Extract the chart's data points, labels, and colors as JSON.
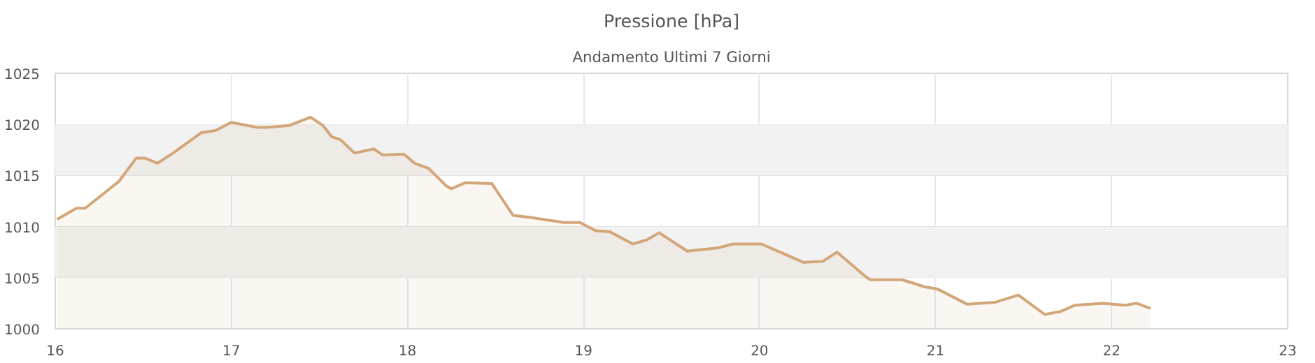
{
  "chart_data": {
    "type": "area",
    "title": "Pressione [hPa]",
    "subtitle": "Andamento Ultimi 7 Giorni",
    "x": [
      16.01,
      16.12,
      16.17,
      16.28,
      16.36,
      16.46,
      16.51,
      16.58,
      16.67,
      16.75,
      16.83,
      16.91,
      17.0,
      17.15,
      17.2,
      17.33,
      17.45,
      17.52,
      17.57,
      17.62,
      17.7,
      17.81,
      17.86,
      17.98,
      18.04,
      18.12,
      18.22,
      18.25,
      18.33,
      18.48,
      18.6,
      18.7,
      18.89,
      18.98,
      19.07,
      19.15,
      19.28,
      19.36,
      19.43,
      19.59,
      19.76,
      19.85,
      20.01,
      20.13,
      20.25,
      20.36,
      20.44,
      20.61,
      20.63,
      20.81,
      20.94,
      21.01,
      21.18,
      21.34,
      21.47,
      21.62,
      21.71,
      21.79,
      21.95,
      22.08,
      22.14,
      22.22
    ],
    "series": [
      {
        "color": "#d2a679",
        "values": [
          1010.7,
          1011.8,
          1011.8,
          1013.3,
          1014.4,
          1016.7,
          1016.7,
          1016.2,
          1017.2,
          1018.2,
          1019.2,
          1019.4,
          1020.2,
          1019.7,
          1019.7,
          1019.9,
          1020.7,
          1019.9,
          1018.8,
          1018.5,
          1017.2,
          1017.6,
          1017.0,
          1017.1,
          1016.2,
          1015.7,
          1014.0,
          1013.7,
          1014.3,
          1014.2,
          1011.1,
          1010.9,
          1010.4,
          1010.4,
          1009.6,
          1009.5,
          1008.3,
          1008.7,
          1009.4,
          1007.6,
          1007.9,
          1008.3,
          1008.3,
          1007.4,
          1006.5,
          1006.6,
          1007.5,
          1005.0,
          1004.8,
          1004.8,
          1004.1,
          1003.9,
          1002.4,
          1002.6,
          1003.3,
          1001.4,
          1001.7,
          1002.3,
          1002.5,
          1002.3,
          1002.5,
          1002.0
        ]
      }
    ],
    "xlim": [
      16,
      23
    ],
    "xticks": [
      16,
      17,
      18,
      19,
      20,
      21,
      22,
      23
    ],
    "ylim": [
      1000,
      1025
    ],
    "yticks": [
      1000,
      1005,
      1010,
      1015,
      1020,
      1025
    ],
    "bands": [
      {
        "axis": "y",
        "from": 1005,
        "to": 1010,
        "color": "#f2f2f2"
      },
      {
        "axis": "y",
        "from": 1015,
        "to": 1020,
        "color": "#f2f2f2"
      }
    ],
    "grid": true,
    "marker": "none",
    "line_style": "solid"
  }
}
